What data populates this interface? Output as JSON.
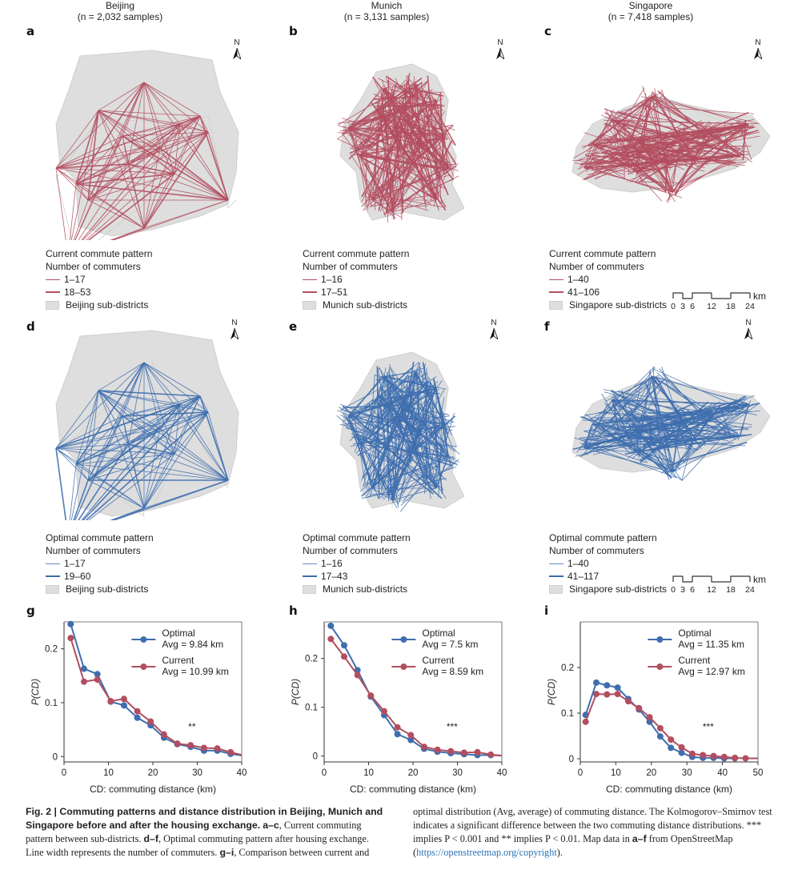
{
  "colors": {
    "current": "#b24e5f",
    "optimal": "#3e6eae",
    "district_fill": "#dedede",
    "district_edge": "#cfcfcf",
    "link": "#2a74b5"
  },
  "cities": [
    {
      "name": "Beijing",
      "samples": "(n = 2,032 samples)"
    },
    {
      "name": "Munich",
      "samples": "(n = 3,131 samples)"
    },
    {
      "name": "Singapore",
      "samples": "(n = 7,418 samples)"
    }
  ],
  "north_label": "N",
  "panels": {
    "a": {
      "letter": "a",
      "legend": {
        "title": "Current commute pattern",
        "subtitle": "Number of commuters",
        "thin": "1–17",
        "thick": "18–53",
        "area": "Beijing sub-districts"
      }
    },
    "b": {
      "letter": "b",
      "legend": {
        "title": "Current commute pattern",
        "subtitle": "Number of commuters",
        "thin": "1–16",
        "thick": "17–51",
        "area": "Munich sub-districts"
      }
    },
    "c": {
      "letter": "c",
      "legend": {
        "title": "Current commute pattern",
        "subtitle": "Number of commuters",
        "thin": "1–40",
        "thick": "41–106",
        "area": "Singapore sub-districts"
      }
    },
    "d": {
      "letter": "d",
      "legend": {
        "title": "Optimal commute pattern",
        "subtitle": "Number of commuters",
        "thin": "1–17",
        "thick": "19–60",
        "area": "Beijing sub-districts"
      }
    },
    "e": {
      "letter": "e",
      "legend": {
        "title": "Optimal commute pattern",
        "subtitle": "Number of commuters",
        "thin": "1–16",
        "thick": "17–43",
        "area": "Munich sub-districts"
      }
    },
    "f": {
      "letter": "f",
      "legend": {
        "title": "Optimal commute pattern",
        "subtitle": "Number of commuters",
        "thin": "1–40",
        "thick": "41–117",
        "area": "Singapore sub-districts"
      }
    }
  },
  "scale_bar": {
    "ticks": [
      "0",
      "3",
      "6",
      "12",
      "18",
      "24"
    ],
    "unit": "km"
  },
  "chart_data": [
    {
      "panel": "g",
      "type": "line",
      "xlabel": "CD: commuting distance (km)",
      "ylabel": "P(CD)",
      "xlim": [
        0,
        40
      ],
      "ylim": [
        -0.01,
        0.25
      ],
      "xticks": [
        0,
        10,
        20,
        30,
        40
      ],
      "yticks": [
        0,
        0.1,
        0.2
      ],
      "ytick_labels": [
        "0",
        "0.1",
        "0.2"
      ],
      "x": [
        1.5,
        4.5,
        7.5,
        10.5,
        13.5,
        16.5,
        19.5,
        22.5,
        25.5,
        28.5,
        31.5,
        34.5,
        37.5,
        40
      ],
      "series": [
        {
          "name": "Optimal",
          "avg_label": "Avg = 9.84 km",
          "values": [
            0.246,
            0.163,
            0.153,
            0.102,
            0.095,
            0.072,
            0.058,
            0.035,
            0.023,
            0.018,
            0.011,
            0.011,
            0.005,
            0.002
          ]
        },
        {
          "name": "Current",
          "avg_label": "Avg = 10.99 km",
          "values": [
            0.22,
            0.139,
            0.143,
            0.103,
            0.107,
            0.084,
            0.065,
            0.041,
            0.024,
            0.021,
            0.016,
            0.015,
            0.008,
            0.003
          ]
        }
      ],
      "significance": "**",
      "legend_position": "top-right",
      "grid": false
    },
    {
      "panel": "h",
      "type": "line",
      "xlabel": "CD: commuting distance (km)",
      "ylabel": "P(CD)",
      "xlim": [
        0,
        40
      ],
      "ylim": [
        -0.012,
        0.275
      ],
      "xticks": [
        0,
        10,
        20,
        30,
        40
      ],
      "yticks": [
        0,
        0.1,
        0.2
      ],
      "ytick_labels": [
        "0",
        "0.1",
        "0.2"
      ],
      "x": [
        1.5,
        4.5,
        7.5,
        10.5,
        13.5,
        16.5,
        19.5,
        22.5,
        25.5,
        28.5,
        31.5,
        34.5,
        37.5,
        40
      ],
      "series": [
        {
          "name": "Optimal",
          "avg_label": "Avg = 7.5 km",
          "values": [
            0.267,
            0.227,
            0.176,
            0.122,
            0.084,
            0.045,
            0.033,
            0.015,
            0.009,
            0.006,
            0.004,
            0.002,
            0.002,
            0.001
          ]
        },
        {
          "name": "Current",
          "avg_label": "Avg = 8.59 km",
          "values": [
            0.24,
            0.204,
            0.166,
            0.124,
            0.092,
            0.059,
            0.043,
            0.019,
            0.013,
            0.01,
            0.007,
            0.008,
            0.003,
            0.001
          ]
        }
      ],
      "significance": "***",
      "legend_position": "top-right",
      "grid": false
    },
    {
      "panel": "i",
      "type": "line",
      "xlabel": "CD: commuting distance (km)",
      "ylabel": "P(CD)",
      "xlim": [
        0,
        50
      ],
      "ylim": [
        -0.007,
        0.3
      ],
      "xticks": [
        0,
        10,
        20,
        30,
        40,
        50
      ],
      "yticks": [
        0,
        0.1,
        0.2
      ],
      "ytick_labels": [
        "0",
        "0.1",
        "0.2"
      ],
      "x_optimal": [
        1.5,
        4.5,
        7.5,
        10.5,
        13.5,
        16.5,
        19.5,
        22.5,
        25.5,
        28.5,
        31.5,
        34.5,
        37.5,
        40.5,
        43.5
      ],
      "x_current": [
        1.5,
        4.5,
        7.5,
        10.5,
        13.5,
        16.5,
        19.5,
        22.5,
        25.5,
        28.5,
        31.5,
        34.5,
        37.5,
        40.5,
        43.5,
        46.5,
        50
      ],
      "series": [
        {
          "name": "Optimal",
          "avg_label": "Avg = 11.35 km",
          "values": [
            0.096,
            0.167,
            0.161,
            0.156,
            0.131,
            0.108,
            0.081,
            0.049,
            0.024,
            0.013,
            0.004,
            0.002,
            0.002,
            0.001,
            0.001
          ]
        },
        {
          "name": "Current",
          "avg_label": "Avg = 12.97 km",
          "values": [
            0.081,
            0.142,
            0.141,
            0.142,
            0.126,
            0.111,
            0.091,
            0.067,
            0.042,
            0.025,
            0.011,
            0.008,
            0.006,
            0.004,
            0.002,
            0.001,
            0.001
          ]
        }
      ],
      "significance": "***",
      "legend_position": "top-right",
      "grid": false
    }
  ],
  "caption": {
    "fig_label": "Fig. 2 | ",
    "title": "Commuting patterns and distance distribution in Beijing, Munich and Singapore before and after the housing exchange.",
    "p1_ref": "a–c",
    "p1_text": ", Current commuting pattern between sub-districts. ",
    "p2_ref": "d–f",
    "p2_text": ", Optimal commuting pattern after housing exchange. Line width represents the number of commuters. ",
    "p3_ref": "g–i",
    "p3_text": ", Comparison between current and optimal distribution (Avg, average) of commuting distance. The Kolmogorov–Smirnov test indicates a significant difference between the two commuting distance distributions. *** implies P < 0.001 and ** implies P < 0.01. Map data in ",
    "p4_ref": "a–f",
    "p4_text": " from OpenStreetMap (",
    "link_text": "https://openstreetmap.org/copyright",
    "end_text": ")."
  }
}
